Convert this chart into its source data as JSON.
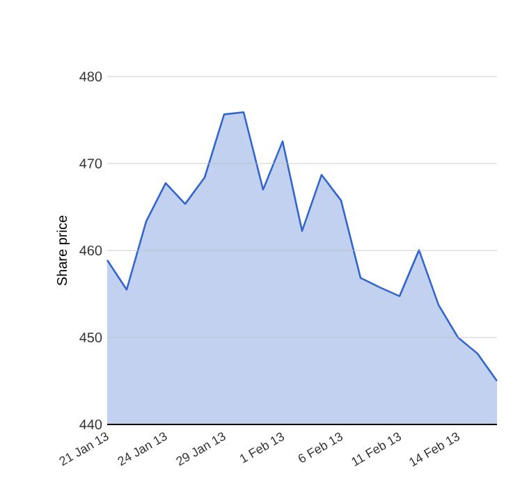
{
  "chart_data": {
    "type": "area",
    "ylabel": "Share price",
    "categories": [
      "21 Jan 13",
      null,
      null,
      "24 Jan 13",
      null,
      null,
      "29 Jan 13",
      null,
      null,
      "1 Feb 13",
      null,
      null,
      "6 Feb 13",
      null,
      null,
      "11 Feb 13",
      null,
      null,
      "14 Feb 13",
      null,
      null
    ],
    "series": [
      {
        "color": "#3366cc",
        "values": [
          458.9,
          455.5,
          463.35,
          467.75,
          465.35,
          468.4,
          475.65,
          475.9,
          467,
          472.55,
          462.25,
          468.7,
          465.75,
          456.85,
          455.75,
          454.75,
          460.05,
          453.75,
          450,
          448.15,
          445
        ]
      }
    ],
    "ylim": [
      440,
      480
    ],
    "yticks": [
      440,
      450,
      460,
      470,
      480
    ],
    "grid": "y"
  }
}
